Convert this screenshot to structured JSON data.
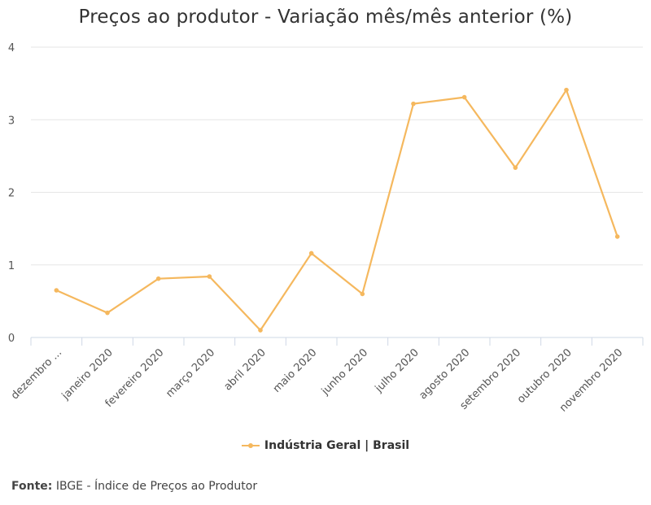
{
  "source": {
    "label": "Fonte:",
    "text": "IBGE - Índice de Preços ao Produtor"
  },
  "chart_data": {
    "type": "line",
    "title": "Preços ao produtor - Variação mês/mês anterior (%)",
    "categories": [
      "dezembro ...",
      "janeiro 2020",
      "fevereiro 2020",
      "março 2020",
      "abril 2020",
      "maio 2020",
      "junho 2020",
      "julho 2020",
      "agosto 2020",
      "setembro 2020",
      "outubro 2020",
      "novembro 2020"
    ],
    "series": [
      {
        "name": "Indústria Geral | Brasil",
        "values": [
          0.65,
          0.34,
          0.81,
          0.84,
          0.1,
          1.16,
          0.6,
          3.22,
          3.31,
          2.34,
          3.41,
          1.39
        ]
      }
    ],
    "ylim": [
      0,
      4
    ],
    "yticks": [
      "0",
      "1",
      "2",
      "3",
      "4"
    ],
    "grid": true,
    "legend": "bottom-center",
    "color": "#f5b85e"
  }
}
